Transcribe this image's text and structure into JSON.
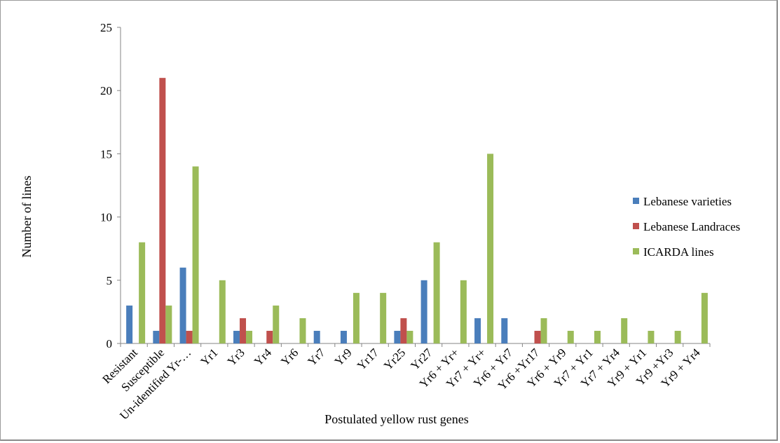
{
  "chart_data": {
    "type": "bar",
    "title": "",
    "xlabel": "Postulated yellow rust genes",
    "ylabel": "Number of lines",
    "ylim": [
      0,
      25
    ],
    "yticks": [
      0,
      5,
      10,
      15,
      20,
      25
    ],
    "grid": false,
    "legend_position": "right",
    "categories": [
      "Resistant",
      "Susceptible",
      "Un-identified Yr-…",
      "Yr1",
      "Yr3",
      "Yr4",
      "Yr6",
      "Yr7",
      "Yr9",
      "Yr17",
      "Yr25",
      "Yr27",
      "Yr6 + Yr+",
      "Yr7 + Yr+",
      "Yr6 + Yr7",
      "Yr6 +Yr17",
      "Yr6 + Yr9",
      "Yr7 + Yr1",
      "Yr7 + Yr4",
      "Yr9 + Yr1",
      "Yr9 +Yr3",
      "Yr9 + Yr4"
    ],
    "series": [
      {
        "name": "Lebanese varieties",
        "color": "#4a7ebb",
        "values": [
          3,
          1,
          6,
          0,
          1,
          0,
          0,
          1,
          1,
          0,
          1,
          5,
          0,
          2,
          2,
          0,
          0,
          0,
          0,
          0,
          0,
          0
        ]
      },
      {
        "name": "Lebanese Landraces",
        "color": "#c0504d",
        "values": [
          0,
          21,
          1,
          0,
          2,
          1,
          0,
          0,
          0,
          0,
          2,
          0,
          0,
          0,
          0,
          1,
          0,
          0,
          0,
          0,
          0,
          0
        ]
      },
      {
        "name": "ICARDA lines",
        "color": "#9bbb59",
        "values": [
          8,
          3,
          14,
          5,
          1,
          3,
          2,
          0,
          4,
          4,
          1,
          8,
          5,
          15,
          0,
          2,
          1,
          1,
          2,
          1,
          1,
          4
        ]
      }
    ]
  }
}
